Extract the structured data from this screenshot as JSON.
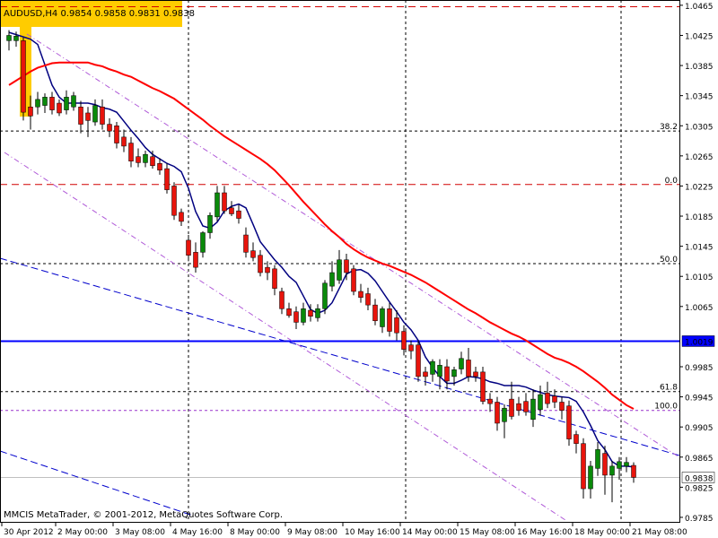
{
  "header": "AUDUSD,H4  0.9854 0.9858 0.9831 0.9838",
  "footer": "MMCIS MetaTrader, © 2001-2012, MetaQuotes Software Corp.",
  "chart_data": {
    "type": "candlestick",
    "categories": [
      "30 Apr 2012",
      null,
      null,
      null,
      null,
      null,
      null,
      "2 May 00:00",
      null,
      null,
      null,
      null,
      null,
      null,
      null,
      "3 May 08:00",
      null,
      null,
      null,
      null,
      null,
      null,
      null,
      "4 May 16:00",
      null,
      null,
      null,
      null,
      null,
      null,
      null,
      "8 May 00:00",
      null,
      null,
      null,
      null,
      null,
      null,
      null,
      "9 May 08:00",
      null,
      null,
      null,
      null,
      null,
      null,
      null,
      "10 May 16:00",
      null,
      null,
      null,
      null,
      null,
      null,
      null,
      "14 May 00:00",
      null,
      null,
      null,
      null,
      null,
      null,
      null,
      "15 May 08:00",
      null,
      null,
      null,
      null,
      null,
      null,
      null,
      "16 May 16:00",
      null,
      null,
      null,
      null,
      null,
      null,
      null,
      "18 May 00:00",
      null,
      null,
      null,
      null,
      null,
      null,
      null,
      "21 May 08:00"
    ],
    "candles": [
      [
        1.0418,
        1.0432,
        1.0405,
        1.0425
      ],
      [
        1.0418,
        1.043,
        1.041,
        1.0424
      ],
      [
        1.0418,
        1.0422,
        1.0312,
        1.0323
      ],
      [
        1.033,
        1.0345,
        1.03,
        1.0318
      ],
      [
        1.033,
        1.035,
        1.032,
        1.034
      ],
      [
        1.0332,
        1.0348,
        1.0322,
        1.0343
      ],
      [
        1.0343,
        1.035,
        1.032,
        1.0326
      ],
      [
        1.0335,
        1.034,
        1.0318,
        1.0322
      ],
      [
        1.0326,
        1.0352,
        1.032,
        1.0343
      ],
      [
        1.033,
        1.035,
        1.0325,
        1.0345
      ],
      [
        1.033,
        1.0338,
        1.0295,
        1.0307
      ],
      [
        1.0322,
        1.033,
        1.029,
        1.0312
      ],
      [
        1.031,
        1.034,
        1.0305,
        1.0332
      ],
      [
        1.033,
        1.034,
        1.03,
        1.0307
      ],
      [
        1.0307,
        1.0315,
        1.029,
        1.0298
      ],
      [
        1.0305,
        1.031,
        1.0275,
        1.0282
      ],
      [
        1.029,
        1.03,
        1.027,
        1.0278
      ],
      [
        1.0282,
        1.029,
        1.025,
        1.0258
      ],
      [
        1.0264,
        1.0275,
        1.025,
        1.0256
      ],
      [
        1.0256,
        1.0272,
        1.025,
        1.0267
      ],
      [
        1.0264,
        1.0272,
        1.0248,
        1.0252
      ],
      [
        1.0255,
        1.0262,
        1.024,
        1.0246
      ],
      [
        1.0248,
        1.0255,
        1.0215,
        1.022
      ],
      [
        1.0225,
        1.023,
        1.018,
        1.0186
      ],
      [
        1.019,
        1.0195,
        1.0172,
        1.0178
      ],
      [
        1.0153,
        1.016,
        1.0125,
        1.0133
      ],
      [
        1.0137,
        1.015,
        1.011,
        1.0117
      ],
      [
        1.0137,
        1.0165,
        1.013,
        1.0163
      ],
      [
        1.0163,
        1.019,
        1.0155,
        1.0186
      ],
      [
        1.0184,
        1.0225,
        1.0178,
        1.0216
      ],
      [
        1.0216,
        1.0225,
        1.0188,
        1.0192
      ],
      [
        1.0196,
        1.0205,
        1.0185,
        1.0188
      ],
      [
        1.0192,
        1.02,
        1.0175,
        1.0182
      ],
      [
        1.016,
        1.017,
        1.013,
        1.0137
      ],
      [
        1.0139,
        1.015,
        1.0125,
        1.013
      ],
      [
        1.0133,
        1.014,
        1.0105,
        1.011
      ],
      [
        1.0117,
        1.0125,
        1.01,
        1.011
      ],
      [
        1.0115,
        1.012,
        1.008,
        1.0089
      ],
      [
        1.0085,
        1.009,
        1.0055,
        1.0062
      ],
      [
        1.0062,
        1.007,
        1.005,
        1.0053
      ],
      [
        1.0058,
        1.0065,
        1.0035,
        1.0044
      ],
      [
        1.0044,
        1.007,
        1.004,
        1.0062
      ],
      [
        1.006,
        1.0068,
        1.0045,
        1.0052
      ],
      [
        1.005,
        1.0068,
        1.0045,
        1.0062
      ],
      [
        1.0062,
        1.01,
        1.0055,
        1.0096
      ],
      [
        1.0092,
        1.0125,
        1.0085,
        1.011
      ],
      [
        1.01,
        1.014,
        1.0095,
        1.0127
      ],
      [
        1.0127,
        1.0135,
        1.01,
        1.011
      ],
      [
        1.0115,
        1.012,
        1.008,
        1.0085
      ],
      [
        1.0085,
        1.0095,
        1.007,
        1.0077
      ],
      [
        1.0082,
        1.009,
        1.006,
        1.0067
      ],
      [
        1.0067,
        1.0075,
        1.004,
        1.0046
      ],
      [
        1.0038,
        1.0065,
        1.003,
        1.0062
      ],
      [
        1.0062,
        1.007,
        1.0025,
        1.0032
      ],
      [
        1.005,
        1.006,
        1.002,
        1.003
      ],
      [
        1.0032,
        1.004,
        1.0,
        1.0008
      ],
      [
        1.0014,
        1.002,
        0.9995,
        1.0006
      ],
      [
        1.0014,
        1.002,
        0.9965,
        0.9972
      ],
      [
        0.9978,
        0.9985,
        0.996,
        0.9972
      ],
      [
        0.9975,
        0.9995,
        0.9965,
        0.9992
      ],
      [
        0.9972,
        0.9995,
        0.9955,
        0.9987
      ],
      [
        0.9985,
        0.9995,
        0.9955,
        0.9966
      ],
      [
        0.9972,
        0.9985,
        0.996,
        0.9981
      ],
      [
        0.9982,
        1.0005,
        0.9975,
        0.9996
      ],
      [
        0.9994,
        1.001,
        0.9965,
        0.9972
      ],
      [
        0.9978,
        0.9985,
        0.9965,
        0.9972
      ],
      [
        0.9978,
        0.9985,
        0.9935,
        0.9939
      ],
      [
        0.9942,
        0.995,
        0.9925,
        0.9936
      ],
      [
        0.9938,
        0.9945,
        0.99,
        0.991
      ],
      [
        0.9912,
        0.9935,
        0.989,
        0.993
      ],
      [
        0.9942,
        0.9965,
        0.9915,
        0.9919
      ],
      [
        0.9936,
        0.9945,
        0.992,
        0.9927
      ],
      [
        0.9939,
        0.995,
        0.992,
        0.9925
      ],
      [
        0.9915,
        0.9955,
        0.9905,
        0.9942
      ],
      [
        0.9928,
        0.996,
        0.992,
        0.9948
      ],
      [
        0.995,
        0.9965,
        0.993,
        0.9936
      ],
      [
        0.9946,
        0.9955,
        0.993,
        0.9938
      ],
      [
        0.9938,
        0.9945,
        0.9915,
        0.9927
      ],
      [
        0.9933,
        0.994,
        0.988,
        0.9889
      ],
      [
        0.9895,
        0.99,
        0.987,
        0.9883
      ],
      [
        0.9883,
        0.989,
        0.981,
        0.9823
      ],
      [
        0.9823,
        0.986,
        0.981,
        0.9853
      ],
      [
        0.985,
        0.9885,
        0.984,
        0.9875
      ],
      [
        0.987,
        0.988,
        0.9815,
        0.9841
      ],
      [
        0.9841,
        0.986,
        0.9805,
        0.9853
      ],
      [
        0.985,
        0.9865,
        0.9835,
        0.9859
      ],
      [
        0.9853,
        0.9865,
        0.9845,
        0.9858
      ],
      [
        0.9854,
        0.9858,
        0.9831,
        0.9838
      ]
    ],
    "up_color": "#0a8a0a",
    "down_color": "#e8140c",
    "wick_color": "#000000",
    "indicators": [
      {
        "color": "#000080",
        "values": [
          1.0429,
          1.0426,
          1.0423,
          1.042,
          1.0413,
          1.0386,
          1.0359,
          1.0343,
          1.0335,
          1.0335,
          1.0335,
          1.0335,
          1.0333,
          1.0329,
          1.0327,
          1.0323,
          1.0311,
          1.0299,
          1.0288,
          1.0276,
          1.0267,
          1.0261,
          1.0255,
          1.0251,
          1.0244,
          1.0222,
          1.0191,
          1.0172,
          1.0169,
          1.0177,
          1.0192,
          1.0198,
          1.0201,
          1.0196,
          1.0174,
          1.0151,
          1.0139,
          1.0127,
          1.0117,
          1.0105,
          1.0097,
          1.0079,
          1.0061,
          1.0056,
          1.006,
          1.007,
          1.0089,
          1.0108,
          1.0113,
          1.0114,
          1.0109,
          1.0099,
          1.0085,
          1.0071,
          1.0058,
          1.0044,
          1.0034,
          1.002,
          0.9998,
          0.9984,
          0.9972,
          0.9963,
          0.9963,
          0.9967,
          0.9972,
          0.9971,
          0.9969,
          0.9965,
          0.9963,
          0.996,
          0.996,
          0.996,
          0.9958,
          0.9954,
          0.9951,
          0.9948,
          0.9946,
          0.9945,
          0.9944,
          0.9939,
          0.9925,
          0.9907,
          0.9887,
          0.9875,
          0.9859,
          0.9853,
          0.9853,
          0.9852
        ]
      },
      {
        "color": "#ff0000",
        "values": [
          1.0359,
          1.0365,
          1.0371,
          1.0377,
          1.0382,
          1.0385,
          1.0388,
          1.0389,
          1.0389,
          1.0389,
          1.0389,
          1.0389,
          1.0386,
          1.0384,
          1.038,
          1.0377,
          1.0373,
          1.037,
          1.0365,
          1.036,
          1.0355,
          1.0351,
          1.0346,
          1.0341,
          1.0334,
          1.0327,
          1.032,
          1.0313,
          1.0305,
          1.0298,
          1.0291,
          1.0285,
          1.0279,
          1.0273,
          1.0267,
          1.0261,
          1.0254,
          1.0246,
          1.0236,
          1.0226,
          1.0215,
          1.0204,
          1.0194,
          1.0184,
          1.0174,
          1.0165,
          1.0157,
          1.0148,
          1.0141,
          1.0135,
          1.013,
          1.0126,
          1.0122,
          1.0119,
          1.0115,
          1.0111,
          1.0107,
          1.0102,
          1.0097,
          1.0091,
          1.0085,
          1.0079,
          1.0073,
          1.0067,
          1.0061,
          1.0056,
          1.005,
          1.0044,
          1.0039,
          1.0034,
          1.0029,
          1.0025,
          1.002,
          1.0014,
          1.0008,
          1.0002,
          0.9997,
          0.9994,
          0.999,
          0.9985,
          0.9979,
          0.9972,
          0.9965,
          0.9957,
          0.9948,
          0.9941,
          0.9934,
          0.9929
        ]
      }
    ],
    "ylim": [
      0.9779,
      1.0472
    ],
    "yticks": [
      1.0465,
      1.0425,
      1.0385,
      1.0345,
      1.0305,
      1.0265,
      1.0225,
      1.0185,
      1.0145,
      1.0105,
      1.0065,
      0.9985,
      0.9945,
      0.9905,
      0.9865,
      0.9825,
      0.9785
    ],
    "levels": [
      {
        "value": 1.0463,
        "color": "#d00000",
        "style": "dashed"
      },
      {
        "value": 1.0298,
        "label": "38.2",
        "color": "#000000",
        "style": "dotted"
      },
      {
        "value": 1.0227,
        "label": "0.0",
        "color": "#d00000",
        "style": "dashed"
      },
      {
        "value": 1.0122,
        "label": "50.0",
        "color": "#000000",
        "style": "dotted"
      },
      {
        "value": 0.9952,
        "label": "61.8",
        "color": "#000000",
        "style": "dotted"
      },
      {
        "value": 0.9927,
        "label": "100.0",
        "color": "#9932cc",
        "style": "dotted"
      },
      {
        "value": 1.0019,
        "color": "#0000ff",
        "style": "solid"
      },
      {
        "value": 0.9838,
        "color": "#c0c0c0",
        "style": "solid"
      }
    ],
    "price_tags": [
      {
        "value": 1.0019,
        "color": "#0000ff",
        "text_color": "#ffffff"
      },
      {
        "value": 0.9838,
        "color": "#ffffff",
        "text_color": "#000000"
      }
    ]
  }
}
